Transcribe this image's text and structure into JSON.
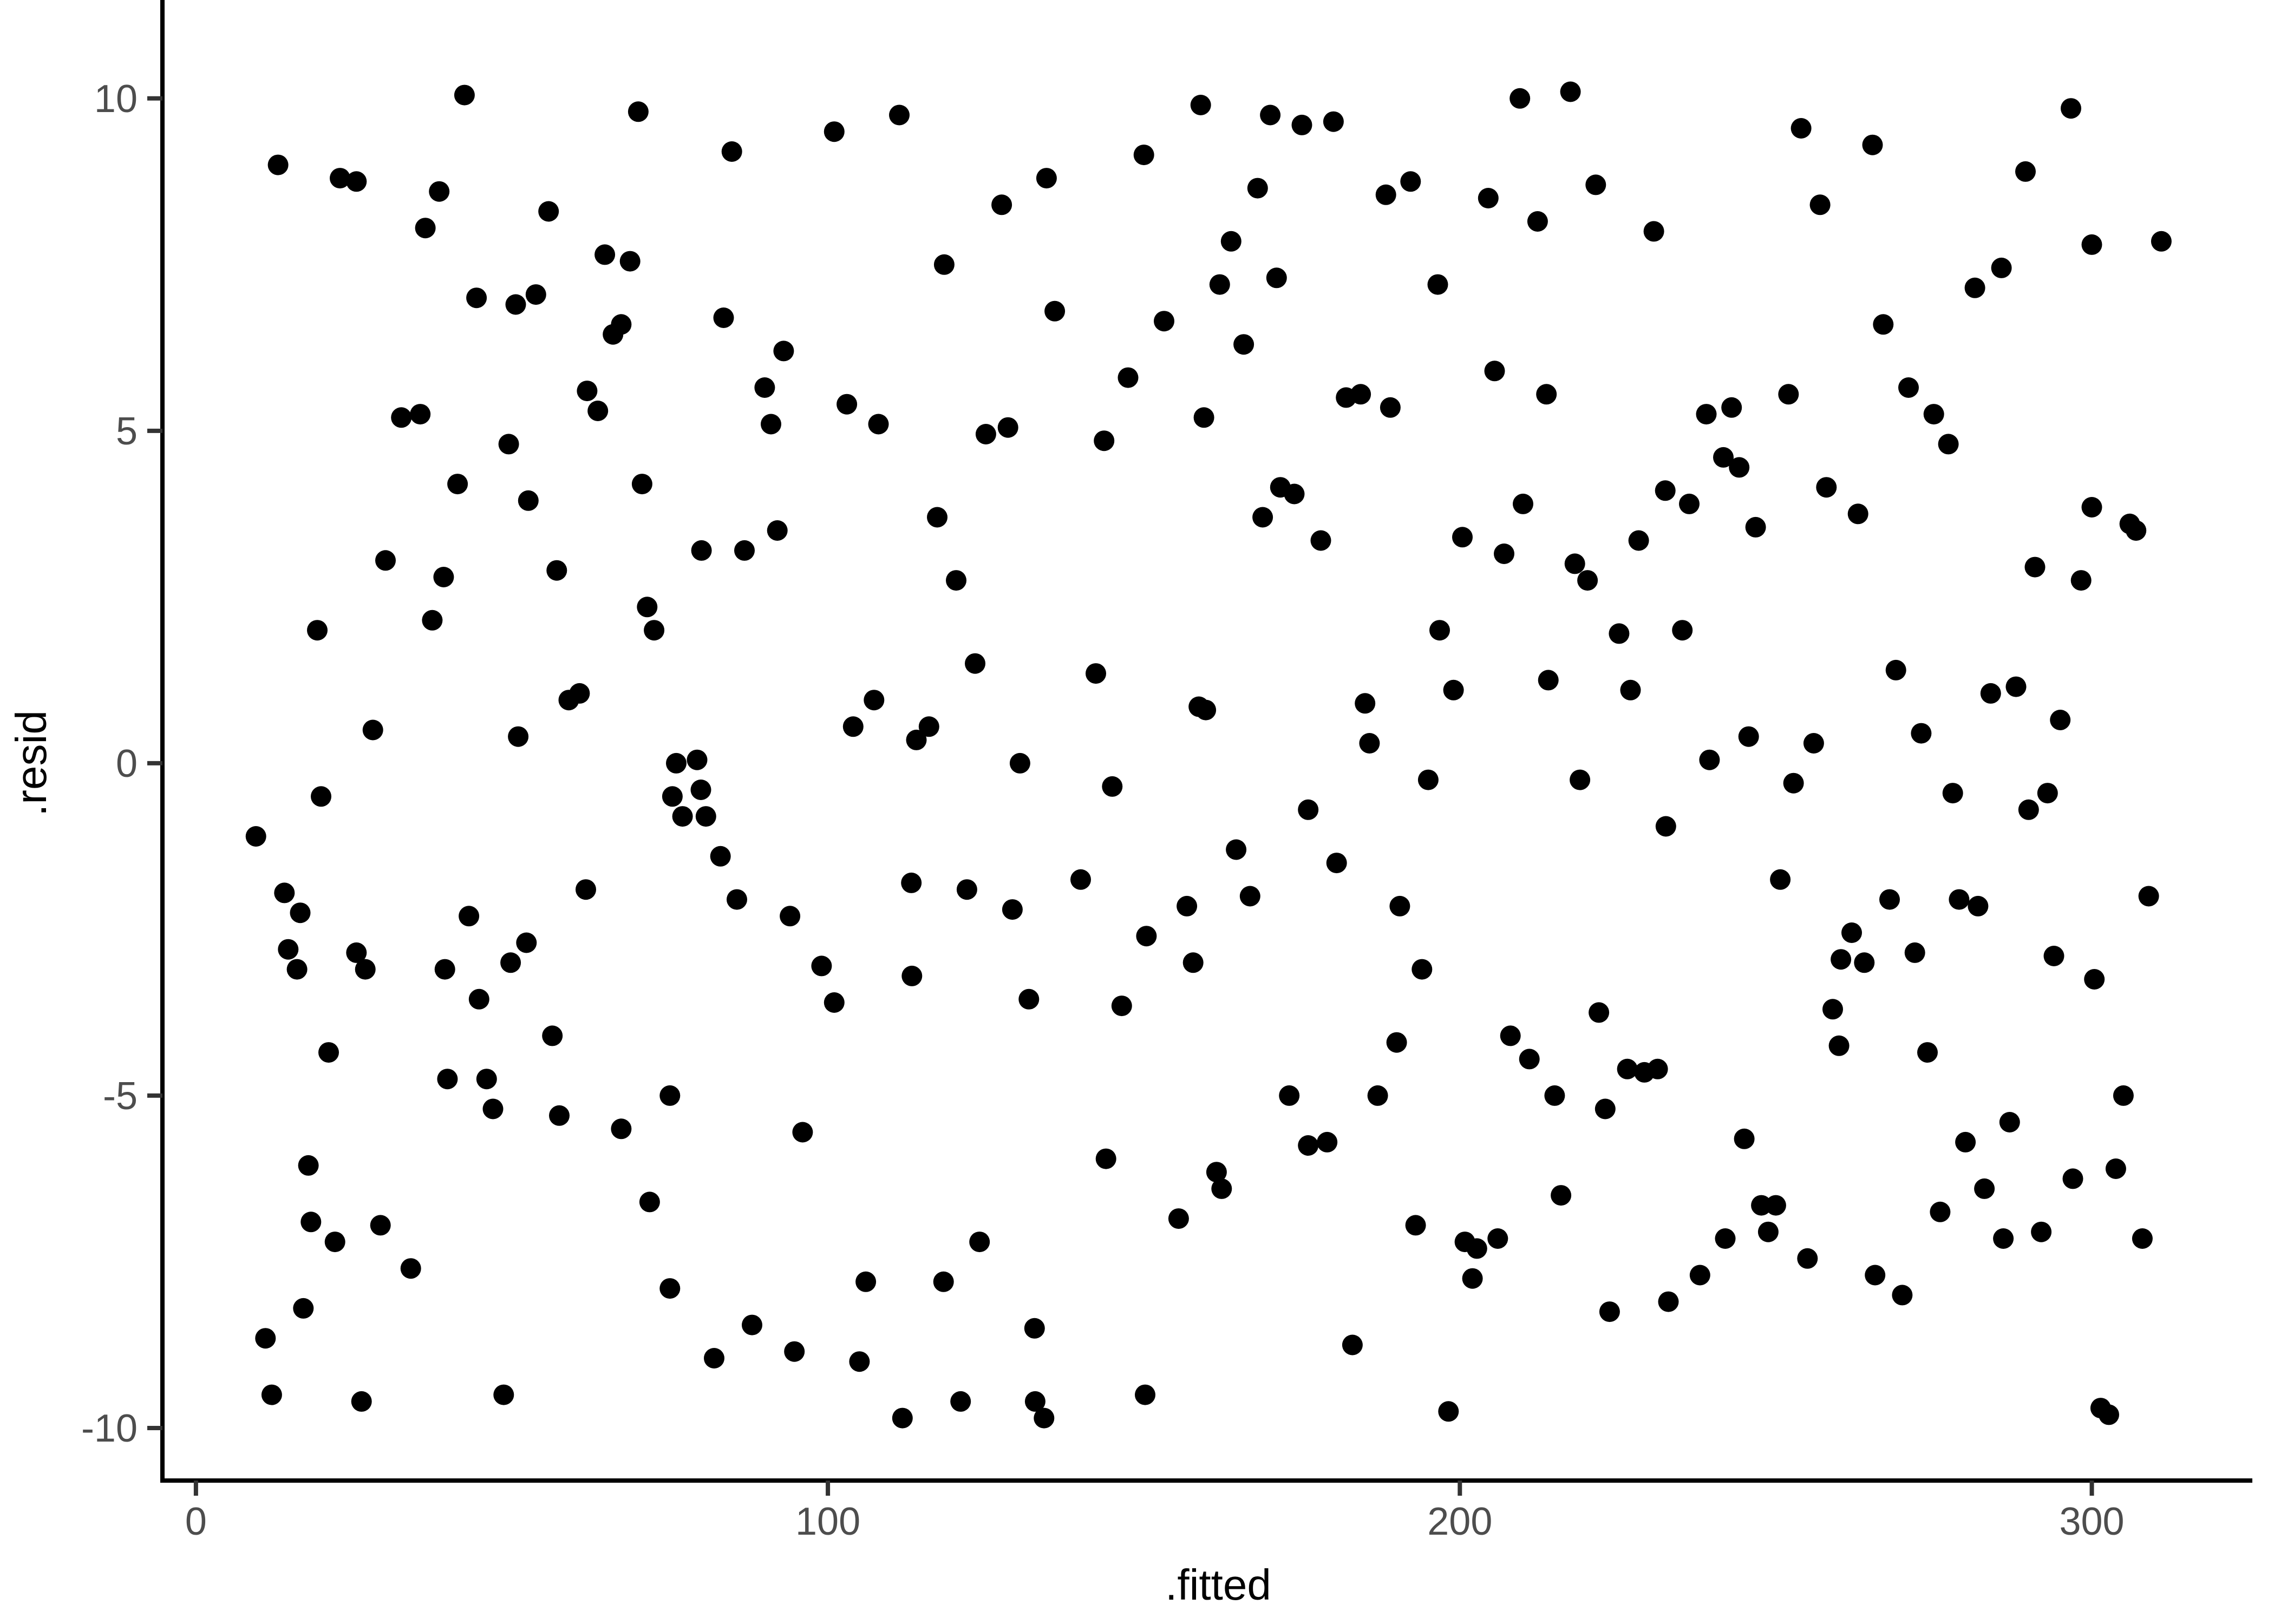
{
  "chart_data": {
    "type": "scatter",
    "title": "",
    "xlabel": ".fitted",
    "ylabel": ".resid",
    "x_ticks": [
      0,
      100,
      200,
      300
    ],
    "y_ticks": [
      10,
      5,
      0,
      -5,
      -10
    ],
    "xlim": [
      -5.3,
      325.4
    ],
    "ylim": [
      -10.79,
      11.48
    ],
    "grid": false,
    "legend": false,
    "marker": "filled-circle",
    "point_color": "#000000",
    "axis_line_color": "#000000",
    "tick_mark_color": "#333333",
    "tick_label_color": "#4d4d4d",
    "axis_title_color": "#000000",
    "background_color": "#ffffff",
    "points": [
      [
        42.5,
        10.05
      ],
      [
        70,
        9.8
      ],
      [
        13,
        9.0
      ],
      [
        22.8,
        8.8
      ],
      [
        25.4,
        8.75
      ],
      [
        38.5,
        8.6
      ],
      [
        55.8,
        8.3
      ],
      [
        36.3,
        8.05
      ],
      [
        64.7,
        7.65
      ],
      [
        68.7,
        7.55
      ],
      [
        44.4,
        7.0
      ],
      [
        50.6,
        6.9
      ],
      [
        53.8,
        7.05
      ],
      [
        66,
        6.45
      ],
      [
        67.3,
        6.6
      ],
      [
        61.9,
        5.6
      ],
      [
        63.6,
        5.3
      ],
      [
        32.5,
        5.2
      ],
      [
        35.5,
        5.25
      ],
      [
        49.5,
        4.8
      ],
      [
        41.4,
        4.2
      ],
      [
        70.6,
        4.2
      ],
      [
        84.8,
        9.2
      ],
      [
        101,
        9.5
      ],
      [
        111.3,
        9.75
      ],
      [
        159,
        9.9
      ],
      [
        150,
        9.15
      ],
      [
        134.6,
        8.8
      ],
      [
        127.5,
        8.4
      ],
      [
        118.4,
        7.5
      ],
      [
        83.5,
        6.7
      ],
      [
        135.9,
        6.8
      ],
      [
        153.2,
        6.65
      ],
      [
        93,
        6.2
      ],
      [
        90,
        5.65
      ],
      [
        103,
        5.4
      ],
      [
        147.5,
        5.8
      ],
      [
        91,
        5.1
      ],
      [
        108,
        5.1
      ],
      [
        125,
        4.95
      ],
      [
        128.5,
        5.05
      ],
      [
        143.7,
        4.85
      ],
      [
        159.5,
        5.2
      ],
      [
        170,
        9.75
      ],
      [
        175,
        9.6
      ],
      [
        180,
        9.65
      ],
      [
        209.5,
        10.0
      ],
      [
        217.5,
        10.1
      ],
      [
        168,
        8.65
      ],
      [
        188.3,
        8.55
      ],
      [
        192.2,
        8.75
      ],
      [
        204.5,
        8.5
      ],
      [
        221.5,
        8.7
      ],
      [
        212.3,
        8.15
      ],
      [
        230.7,
        8.0
      ],
      [
        163.8,
        7.85
      ],
      [
        162,
        7.2
      ],
      [
        171,
        7.3
      ],
      [
        196.5,
        7.2
      ],
      [
        165.8,
        6.3
      ],
      [
        205.5,
        5.9
      ],
      [
        213.7,
        5.55
      ],
      [
        182,
        5.5
      ],
      [
        184.3,
        5.55
      ],
      [
        189,
        5.35
      ],
      [
        239,
        5.25
      ],
      [
        243,
        5.35
      ],
      [
        241.7,
        4.6
      ],
      [
        244.2,
        4.45
      ],
      [
        171.6,
        4.15
      ],
      [
        173.8,
        4.05
      ],
      [
        232.5,
        4.1
      ],
      [
        254,
        9.55
      ],
      [
        265.3,
        9.3
      ],
      [
        296.7,
        9.85
      ],
      [
        289.5,
        8.9
      ],
      [
        257,
        8.4
      ],
      [
        300,
        7.8
      ],
      [
        311,
        7.85
      ],
      [
        285.7,
        7.45
      ],
      [
        281.5,
        7.15
      ],
      [
        267,
        6.6
      ],
      [
        271,
        5.65
      ],
      [
        252,
        5.55
      ],
      [
        275,
        5.25
      ],
      [
        277.3,
        4.8
      ],
      [
        258,
        4.15
      ],
      [
        52.6,
        3.95
      ],
      [
        30,
        3.05
      ],
      [
        39.2,
        2.8
      ],
      [
        57.1,
        2.9
      ],
      [
        71.4,
        2.35
      ],
      [
        72.5,
        2.0
      ],
      [
        19.2,
        2.0
      ],
      [
        37.4,
        2.15
      ],
      [
        59,
        0.95
      ],
      [
        60.7,
        1.05
      ],
      [
        28,
        0.5
      ],
      [
        51,
        0.4
      ],
      [
        19.8,
        -0.5
      ],
      [
        9.5,
        -1.1
      ],
      [
        14,
        -1.95
      ],
      [
        16.5,
        -2.25
      ],
      [
        43.2,
        -2.3
      ],
      [
        61.7,
        -1.9
      ],
      [
        14.6,
        -2.8
      ],
      [
        16,
        -3.1
      ],
      [
        25.4,
        -2.85
      ],
      [
        26.8,
        -3.1
      ],
      [
        39.4,
        -3.1
      ],
      [
        49.8,
        -3.0
      ],
      [
        52.3,
        -2.7
      ],
      [
        76,
        0.0
      ],
      [
        79.3,
        0.05
      ],
      [
        75.4,
        -0.5
      ],
      [
        79.9,
        -0.4
      ],
      [
        77.0,
        -0.8
      ],
      [
        80.7,
        -0.8
      ],
      [
        117.3,
        3.7
      ],
      [
        92,
        3.5
      ],
      [
        86.8,
        3.2
      ],
      [
        80,
        3.2
      ],
      [
        120.3,
        2.75
      ],
      [
        123.3,
        1.5
      ],
      [
        142.4,
        1.35
      ],
      [
        107.3,
        0.95
      ],
      [
        104,
        0.55
      ],
      [
        116,
        0.55
      ],
      [
        114,
        0.35
      ],
      [
        130.4,
        0.0
      ],
      [
        158.7,
        0.85
      ],
      [
        159.8,
        0.8
      ],
      [
        145,
        -0.35
      ],
      [
        83,
        -1.4
      ],
      [
        85.6,
        -2.05
      ],
      [
        94,
        -2.3
      ],
      [
        113.2,
        -1.8
      ],
      [
        122,
        -1.9
      ],
      [
        129.2,
        -2.2
      ],
      [
        140,
        -1.75
      ],
      [
        99,
        -3.05
      ],
      [
        101,
        -3.6
      ],
      [
        113.3,
        -3.2
      ],
      [
        150.4,
        -2.6
      ],
      [
        156.8,
        -2.15
      ],
      [
        157.8,
        -3.0
      ],
      [
        168.8,
        3.7
      ],
      [
        178,
        3.35
      ],
      [
        210,
        3.9
      ],
      [
        200.4,
        3.4
      ],
      [
        207,
        3.15
      ],
      [
        218.2,
        3.0
      ],
      [
        220.2,
        2.75
      ],
      [
        236.3,
        3.9
      ],
      [
        228.3,
        3.35
      ],
      [
        196.8,
        2.0
      ],
      [
        225.2,
        1.95
      ],
      [
        235.2,
        2.0
      ],
      [
        199,
        1.1
      ],
      [
        214,
        1.25
      ],
      [
        227,
        1.1
      ],
      [
        185,
        0.9
      ],
      [
        185.7,
        0.3
      ],
      [
        195,
        -0.25
      ],
      [
        219,
        -0.25
      ],
      [
        176,
        -0.7
      ],
      [
        164.6,
        -1.3
      ],
      [
        180.5,
        -1.5
      ],
      [
        166.8,
        -2.0
      ],
      [
        190.5,
        -2.15
      ],
      [
        194,
        -3.1
      ],
      [
        232.6,
        -0.95
      ],
      [
        239.5,
        0.05
      ],
      [
        246.8,
        3.55
      ],
      [
        263,
        3.75
      ],
      [
        300,
        3.85
      ],
      [
        306,
        3.6
      ],
      [
        307,
        3.5
      ],
      [
        291,
        2.95
      ],
      [
        298.3,
        2.75
      ],
      [
        269,
        1.4
      ],
      [
        284,
        1.05
      ],
      [
        288,
        1.15
      ],
      [
        295,
        0.65
      ],
      [
        245.7,
        0.4
      ],
      [
        256,
        0.3
      ],
      [
        273,
        0.45
      ],
      [
        252.8,
        -0.3
      ],
      [
        293,
        -0.45
      ],
      [
        278,
        -0.45
      ],
      [
        290,
        -0.7
      ],
      [
        250.7,
        -1.75
      ],
      [
        268,
        -2.05
      ],
      [
        279,
        -2.05
      ],
      [
        282,
        -2.15
      ],
      [
        309,
        -2.0
      ],
      [
        262,
        -2.55
      ],
      [
        260.3,
        -2.95
      ],
      [
        264,
        -3.0
      ],
      [
        272,
        -2.85
      ],
      [
        294,
        -2.9
      ],
      [
        44.8,
        -3.55
      ],
      [
        56.4,
        -4.1
      ],
      [
        21,
        -4.35
      ],
      [
        39.8,
        -4.75
      ],
      [
        46,
        -4.75
      ],
      [
        47,
        -5.2
      ],
      [
        57.5,
        -5.3
      ],
      [
        67.3,
        -5.5
      ],
      [
        75,
        -5.0
      ],
      [
        17.8,
        -6.05
      ],
      [
        71.8,
        -6.6
      ],
      [
        18.2,
        -6.9
      ],
      [
        22,
        -7.2
      ],
      [
        29.2,
        -6.95
      ],
      [
        34,
        -7.6
      ],
      [
        17,
        -8.2
      ],
      [
        75,
        -7.9
      ],
      [
        11,
        -8.65
      ],
      [
        12,
        -9.5
      ],
      [
        26.2,
        -9.6
      ],
      [
        48.7,
        -9.5
      ],
      [
        131.8,
        -3.55
      ],
      [
        146.5,
        -3.65
      ],
      [
        96,
        -5.55
      ],
      [
        144,
        -5.95
      ],
      [
        155.5,
        -6.85
      ],
      [
        124,
        -7.2
      ],
      [
        106,
        -7.8
      ],
      [
        118.3,
        -7.8
      ],
      [
        88,
        -8.45
      ],
      [
        94.7,
        -8.85
      ],
      [
        105,
        -9.0
      ],
      [
        82,
        -8.95
      ],
      [
        121,
        -9.6
      ],
      [
        132.7,
        -8.5
      ],
      [
        111.8,
        -9.85
      ],
      [
        132.8,
        -9.6
      ],
      [
        134.2,
        -9.85
      ],
      [
        150.2,
        -9.5
      ],
      [
        222,
        -3.75
      ],
      [
        190,
        -4.2
      ],
      [
        208,
        -4.1
      ],
      [
        211,
        -4.45
      ],
      [
        226.5,
        -4.6
      ],
      [
        229.2,
        -4.65
      ],
      [
        231.3,
        -4.6
      ],
      [
        173,
        -5.0
      ],
      [
        187,
        -5.0
      ],
      [
        215,
        -5.0
      ],
      [
        223,
        -5.2
      ],
      [
        176,
        -5.75
      ],
      [
        179,
        -5.7
      ],
      [
        245,
        -5.65
      ],
      [
        161.5,
        -6.15
      ],
      [
        162.3,
        -6.4
      ],
      [
        193,
        -6.95
      ],
      [
        200.8,
        -7.2
      ],
      [
        202.7,
        -7.3
      ],
      [
        206,
        -7.15
      ],
      [
        202,
        -7.75
      ],
      [
        216,
        -6.5
      ],
      [
        242,
        -7.15
      ],
      [
        238,
        -7.7
      ],
      [
        233,
        -8.1
      ],
      [
        223.7,
        -8.25
      ],
      [
        183,
        -8.75
      ],
      [
        198.2,
        -9.75
      ],
      [
        259,
        -3.7
      ],
      [
        260,
        -4.25
      ],
      [
        274,
        -4.35
      ],
      [
        300.4,
        -3.25
      ],
      [
        305,
        -5.0
      ],
      [
        287,
        -5.4
      ],
      [
        280,
        -5.7
      ],
      [
        297,
        -6.25
      ],
      [
        303.8,
        -6.1
      ],
      [
        283,
        -6.4
      ],
      [
        276,
        -6.75
      ],
      [
        286,
        -7.15
      ],
      [
        292,
        -7.05
      ],
      [
        247.7,
        -6.65
      ],
      [
        250,
        -6.65
      ],
      [
        248.8,
        -7.05
      ],
      [
        255,
        -7.45
      ],
      [
        265.7,
        -7.7
      ],
      [
        270,
        -8.0
      ],
      [
        308,
        -7.15
      ],
      [
        301.4,
        -9.7
      ],
      [
        302.7,
        -9.8
      ]
    ]
  }
}
